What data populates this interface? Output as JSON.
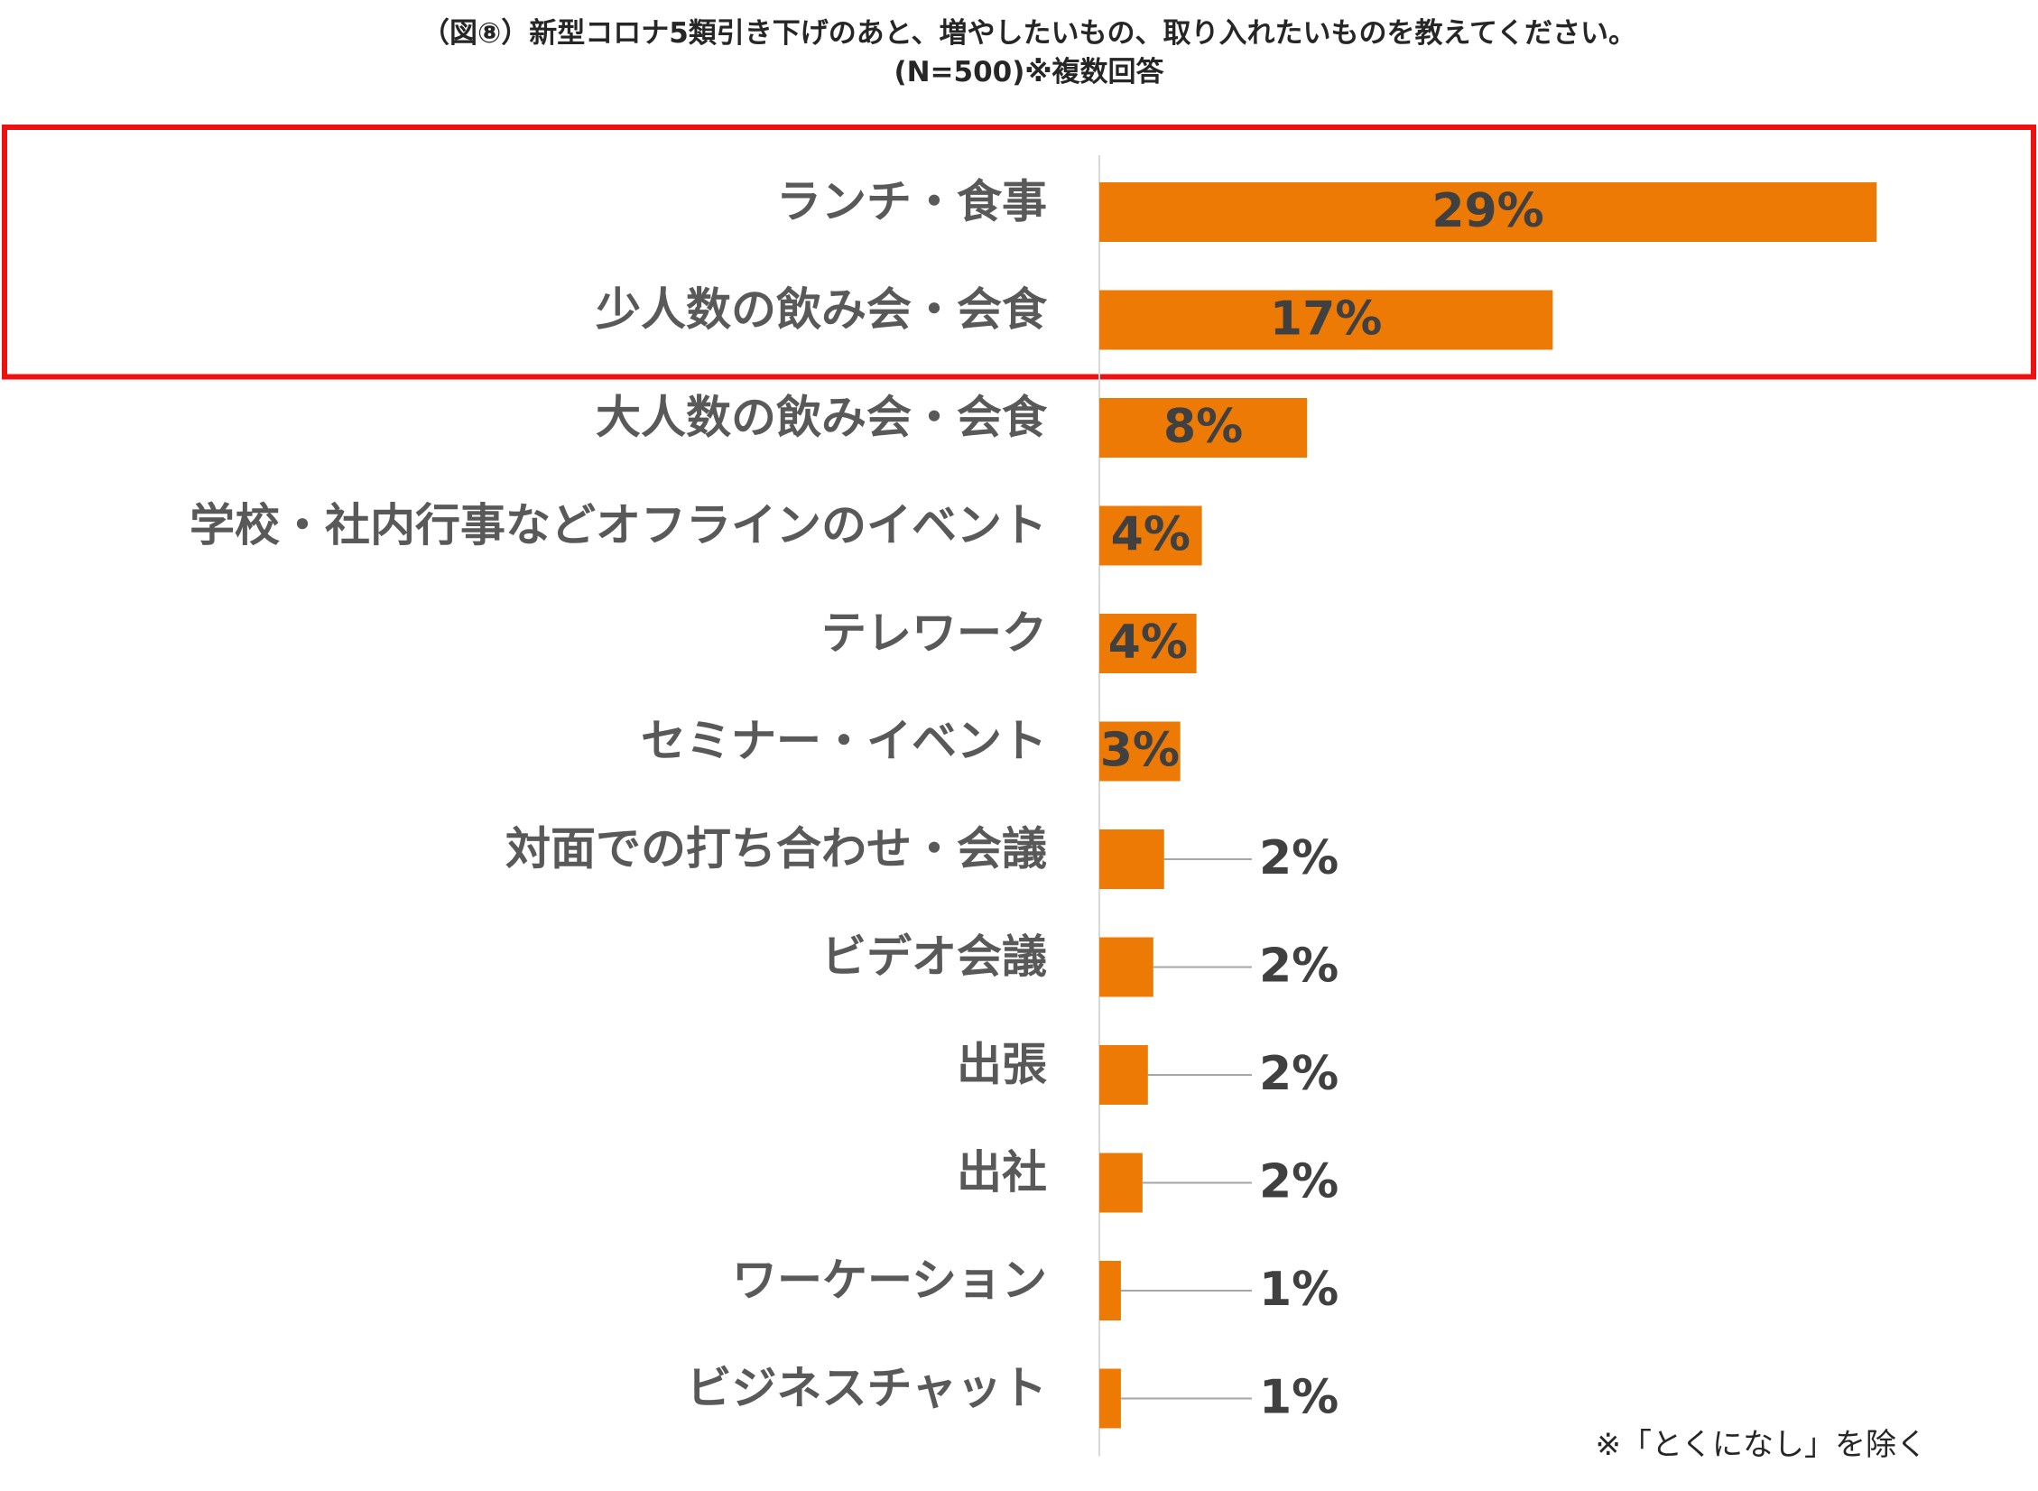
{
  "chart_data": {
    "type": "bar",
    "orientation": "horizontal",
    "title": "（図⑧）新型コロナ5類引き下げのあと、増やしたいもの、取り入れたいものを教えてください。",
    "subtitle": "(N=500)※複数回答",
    "categories": [
      "ランチ・食事",
      "少人数の飲み会・会食",
      "大人数の飲み会・会食",
      "学校・社内行事などオフラインのイベント",
      "テレワーク",
      "セミナー・イベント",
      "対面での打ち合わせ・会議",
      "ビデオ会議",
      "出張",
      "出社",
      "ワーケーション",
      "ビジネスチャット"
    ],
    "values": [
      28.8,
      16.8,
      7.7,
      3.8,
      3.6,
      3.0,
      2.4,
      2.0,
      1.8,
      1.6,
      0.8,
      0.8
    ],
    "value_labels": [
      "29%",
      "17%",
      "8%",
      "4%",
      "4%",
      "3%",
      "2%",
      "2%",
      "2%",
      "2%",
      "1%",
      "1%"
    ],
    "highlight_categories": [
      "ランチ・食事",
      "少人数の飲み会・会食"
    ],
    "bar_color": "#ee7a06",
    "highlight_color": "#ee1111",
    "xlim": [
      0,
      30
    ],
    "grid": false,
    "legend": "none",
    "note": "※「とくになし」を除く"
  }
}
